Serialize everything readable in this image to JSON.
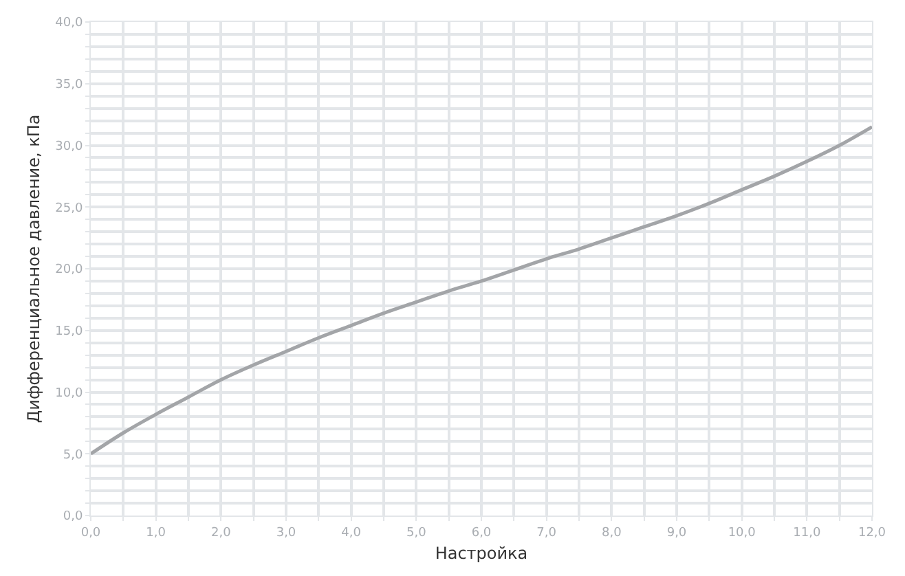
{
  "chart_data": {
    "type": "line",
    "xlabel": "Настройка",
    "ylabel": "Дифференциальное давление, кПа",
    "x": [
      0,
      0.5,
      1,
      1.5,
      2,
      2.5,
      3,
      3.5,
      4,
      4.5,
      5,
      5.5,
      6,
      6.5,
      7,
      7.5,
      8,
      8.5,
      9,
      9.5,
      10,
      10.5,
      11,
      11.5,
      12
    ],
    "series": [
      {
        "color": "#a3a5a8",
        "values": [
          5.0,
          6.7,
          8.2,
          9.6,
          11.0,
          12.2,
          13.3,
          14.4,
          15.4,
          16.4,
          17.3,
          18.2,
          19.0,
          19.9,
          20.8,
          21.6,
          22.5,
          23.4,
          24.3,
          25.3,
          26.4,
          27.5,
          28.7,
          30.0,
          31.5
        ]
      }
    ],
    "xlim": [
      0,
      12
    ],
    "ylim": [
      0,
      40
    ],
    "xticks": [
      {
        "value": 0,
        "label": "0,0"
      },
      {
        "value": 0.5,
        "label": null
      },
      {
        "value": 1,
        "label": "1,0"
      },
      {
        "value": 1.5,
        "label": null
      },
      {
        "value": 2,
        "label": "2,0"
      },
      {
        "value": 2.5,
        "label": null
      },
      {
        "value": 3,
        "label": "3,0"
      },
      {
        "value": 3.5,
        "label": null
      },
      {
        "value": 4,
        "label": "4,0"
      },
      {
        "value": 4.5,
        "label": null
      },
      {
        "value": 5,
        "label": "5,0"
      },
      {
        "value": 5.5,
        "label": null
      },
      {
        "value": 6,
        "label": "6,0"
      },
      {
        "value": 6.5,
        "label": null
      },
      {
        "value": 7,
        "label": "7,0"
      },
      {
        "value": 7.5,
        "label": null
      },
      {
        "value": 8,
        "label": "8,0"
      },
      {
        "value": 8.5,
        "label": null
      },
      {
        "value": 9,
        "label": "9,0"
      },
      {
        "value": 9.5,
        "label": null
      },
      {
        "value": 10,
        "label": "10,0"
      },
      {
        "value": 10.5,
        "label": null
      },
      {
        "value": 11,
        "label": "11,0"
      },
      {
        "value": 11.5,
        "label": null
      },
      {
        "value": 12,
        "label": "12,0"
      }
    ],
    "yticks": [
      {
        "value": 0,
        "label": "0,0"
      },
      {
        "value": 1,
        "label": null
      },
      {
        "value": 2,
        "label": null
      },
      {
        "value": 3,
        "label": null
      },
      {
        "value": 4,
        "label": null
      },
      {
        "value": 5,
        "label": "5,0"
      },
      {
        "value": 6,
        "label": null
      },
      {
        "value": 7,
        "label": null
      },
      {
        "value": 8,
        "label": null
      },
      {
        "value": 9,
        "label": null
      },
      {
        "value": 10,
        "label": "10,0"
      },
      {
        "value": 11,
        "label": null
      },
      {
        "value": 12,
        "label": null
      },
      {
        "value": 13,
        "label": null
      },
      {
        "value": 14,
        "label": null
      },
      {
        "value": 15,
        "label": "15,0"
      },
      {
        "value": 16,
        "label": null
      },
      {
        "value": 17,
        "label": null
      },
      {
        "value": 18,
        "label": null
      },
      {
        "value": 19,
        "label": null
      },
      {
        "value": 20,
        "label": "20,0"
      },
      {
        "value": 21,
        "label": null
      },
      {
        "value": 22,
        "label": null
      },
      {
        "value": 23,
        "label": null
      },
      {
        "value": 24,
        "label": null
      },
      {
        "value": 25,
        "label": "25,0"
      },
      {
        "value": 26,
        "label": null
      },
      {
        "value": 27,
        "label": null
      },
      {
        "value": 28,
        "label": null
      },
      {
        "value": 29,
        "label": null
      },
      {
        "value": 30,
        "label": "30,0"
      },
      {
        "value": 31,
        "label": null
      },
      {
        "value": 32,
        "label": null
      },
      {
        "value": 33,
        "label": null
      },
      {
        "value": 34,
        "label": null
      },
      {
        "value": 35,
        "label": "35,0"
      },
      {
        "value": 36,
        "label": null
      },
      {
        "value": 37,
        "label": null
      },
      {
        "value": 38,
        "label": null
      },
      {
        "value": 39,
        "label": null
      },
      {
        "value": 40,
        "label": "40,0"
      }
    ],
    "grid": true,
    "marker": "none",
    "line_style": "solid"
  }
}
